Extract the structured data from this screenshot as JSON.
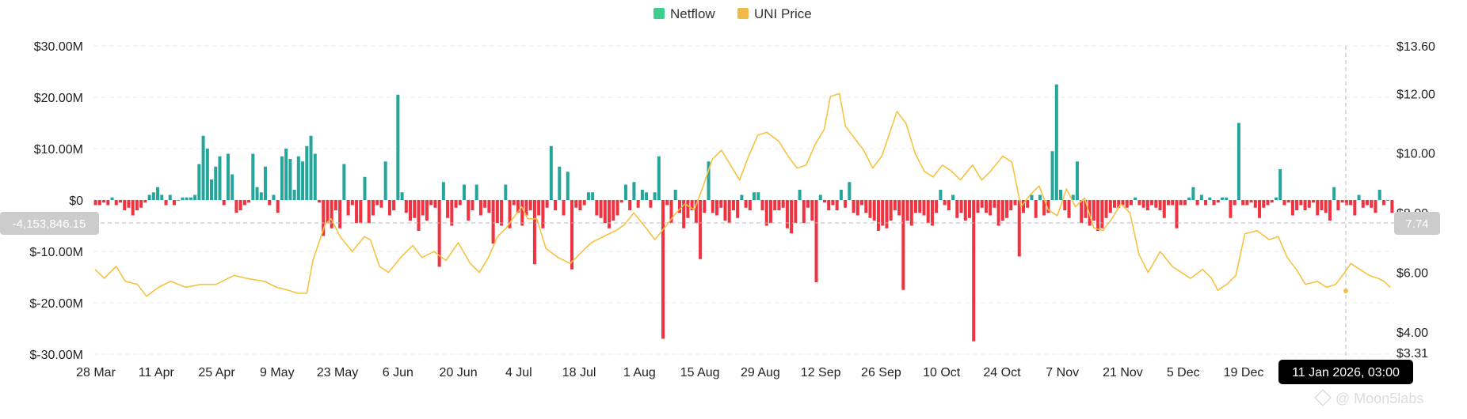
{
  "legend": {
    "netflow_label": "Netflow",
    "price_label": "UNI Price"
  },
  "crosshair": {
    "left_value": "-4,153,846.15",
    "right_value": "7.74",
    "date_label": "11 Jan 2026, 03:00"
  },
  "watermark": "@ Moon5labs",
  "colors": {
    "positive": "#26a69a",
    "negative": "#ef3340",
    "price_line": "#f5c242",
    "legend_netflow": "#3ecf8e",
    "legend_price": "#f0b94a",
    "grid": "#eeeeee",
    "crosshair_bg": "#cccccc",
    "date_label_bg": "#000000"
  },
  "chart_data": {
    "type": "bar+line",
    "x_ticks": [
      "28 Mar",
      "11 Apr",
      "25 Apr",
      "9 May",
      "23 May",
      "6 Jun",
      "20 Jun",
      "4 Jul",
      "18 Jul",
      "1 Aug",
      "15 Aug",
      "29 Aug",
      "12 Sep",
      "26 Sep",
      "10 Oct",
      "24 Oct",
      "7 Nov",
      "21 Nov",
      "5 Dec",
      "19 Dec"
    ],
    "y_left": {
      "ticks": [
        "$30.00M",
        "$20.00M",
        "$10.00M",
        "$0",
        "$-10.00M",
        "$-20.00M",
        "$-30.00M"
      ],
      "range": [
        -30,
        30
      ],
      "unit": "M"
    },
    "y_right": {
      "ticks": [
        "$13.60",
        "$12.00",
        "$10.00",
        "$8.00",
        "$6.00",
        "$4.00",
        "$3.31"
      ],
      "range": [
        3.31,
        13.6
      ]
    },
    "series": [
      {
        "name": "Netflow",
        "kind": "bar",
        "values": [
          -1,
          -1,
          -0.5,
          -1,
          0.5,
          -1,
          -0.5,
          -2,
          -1.5,
          -3,
          -2,
          -1.5,
          -0.5,
          1,
          1.5,
          2.5,
          1,
          -1,
          1,
          -1,
          0,
          0.5,
          0.5,
          0.5,
          1,
          7,
          12.5,
          10,
          4,
          6.5,
          8.5,
          -1,
          9,
          5,
          -2.5,
          -2,
          -1,
          -0.5,
          9,
          2.5,
          1.5,
          6.5,
          -1,
          1,
          -2.5,
          8.5,
          10,
          8,
          2,
          8.5,
          7.5,
          10.5,
          12.5,
          9,
          -0.5,
          -7,
          -4.5,
          -5.5,
          -2,
          -5.5,
          7,
          -3,
          -1,
          -4.5,
          -4.5,
          4.5,
          -4.5,
          -3,
          -1,
          -1.5,
          7.5,
          -3,
          -2,
          20.5,
          1.5,
          -2.5,
          -4,
          -3.5,
          -6,
          -3,
          -4,
          -1,
          -1.5,
          -13,
          3.5,
          -3.5,
          -5,
          -1.5,
          -1,
          3,
          -4,
          -2,
          3,
          -3,
          -1.5,
          -2.5,
          -8.5,
          -4.5,
          -5,
          3,
          -5.5,
          -1,
          -2.5,
          -5,
          -3,
          -2,
          -12.5,
          -3,
          -5.5,
          -1.5,
          10.5,
          -2,
          6.5,
          -3,
          5.5,
          -13.5,
          -1.5,
          -2,
          -1,
          1.5,
          1.5,
          -3,
          -3.5,
          -4.5,
          -5.5,
          -4,
          -3,
          -0.5,
          3,
          -2,
          3.5,
          -1.5,
          2,
          1.5,
          -1.5,
          1.5,
          8.5,
          -27,
          -1,
          -4.5,
          2,
          -2.5,
          -5.5,
          -3.5,
          -2,
          -4.5,
          -11.5,
          -2.5,
          7.5,
          -2.5,
          -3,
          -1.5,
          -4,
          -4.5,
          -2,
          -3.5,
          1,
          -1.5,
          -2,
          1.5,
          1.5,
          -2,
          -5,
          -4.5,
          -2,
          -2,
          -1.5,
          -5.5,
          -6.5,
          -4.5,
          2,
          -4.5,
          -1.5,
          -4,
          -16,
          1,
          -0.5,
          -2,
          -1,
          -2,
          2,
          -1.5,
          3.5,
          -2.5,
          -3,
          -1,
          -2.5,
          -3.5,
          -4,
          -6,
          -5,
          -5.5,
          -4,
          -2,
          -3,
          -17.5,
          -4,
          -5,
          -2.5,
          -2.5,
          -3,
          -4.5,
          -5,
          -2.5,
          2,
          -1,
          -2,
          1,
          -3.5,
          -2.5,
          -4,
          -3.5,
          -27.5,
          -2.5,
          -1.5,
          -2.5,
          -3,
          -1.5,
          -5,
          -4,
          -3.5,
          -2,
          -1,
          -11,
          -2.5,
          -1.5,
          1,
          -3.5,
          1,
          -3,
          -2.5,
          9.5,
          22.5,
          2,
          -2,
          -3.5,
          1,
          7.5,
          -4.5,
          -3.5,
          -5,
          -4,
          -6,
          -5.5,
          -3.5,
          -2.5,
          -1.5,
          -1.5,
          -1,
          -1.5,
          -1,
          0.5,
          -1,
          -1.5,
          -2,
          -1,
          -1.5,
          -2,
          -3.5,
          -1,
          -1,
          -5.5,
          -1,
          -1,
          0.5,
          2.5,
          -1,
          1,
          -1,
          0.5,
          -1,
          -0.5,
          0.5,
          0.5,
          -3.5,
          -1,
          15,
          -1,
          -1,
          -0.5,
          -1.5,
          -3.5,
          -1.5,
          -1,
          -0.5,
          0.5,
          6,
          -1,
          -0.5,
          -3,
          -2,
          -1,
          -2,
          -1.5,
          -0.5,
          -3,
          -2,
          -2.5,
          -4,
          2.5,
          -2,
          -0.5,
          -1,
          -1,
          -3,
          1,
          -1.5,
          -1,
          -1.5,
          -2.5,
          2,
          -1,
          0,
          -2.5
        ]
      },
      {
        "name": "UNI Price",
        "kind": "line",
        "points": [
          [
            0,
            6.1
          ],
          [
            3,
            5.8
          ],
          [
            7,
            6.2
          ],
          [
            10,
            5.7
          ],
          [
            14,
            5.6
          ],
          [
            17,
            5.2
          ],
          [
            21,
            5.5
          ],
          [
            25,
            5.7
          ],
          [
            30,
            5.5
          ],
          [
            35,
            5.6
          ],
          [
            40,
            5.6
          ],
          [
            46,
            5.9
          ],
          [
            50,
            5.8
          ],
          [
            56,
            5.7
          ],
          [
            60,
            5.5
          ],
          [
            64,
            5.4
          ],
          [
            67,
            5.3
          ],
          [
            70,
            5.3
          ],
          [
            72,
            6.4
          ],
          [
            76,
            7.6
          ],
          [
            78,
            7.8
          ],
          [
            81,
            7.2
          ],
          [
            85,
            6.7
          ],
          [
            89,
            7.2
          ],
          [
            91,
            7.1
          ],
          [
            94,
            6.2
          ],
          [
            97,
            6.0
          ],
          [
            101,
            6.5
          ],
          [
            105,
            6.9
          ],
          [
            108,
            6.5
          ],
          [
            112,
            6.7
          ],
          [
            116,
            6.4
          ],
          [
            120,
            7.0
          ],
          [
            124,
            6.3
          ],
          [
            127,
            6.0
          ],
          [
            130,
            6.5
          ],
          [
            133,
            7.2
          ],
          [
            136,
            7.5
          ],
          [
            138,
            7.8
          ],
          [
            141,
            8.2
          ],
          [
            143,
            7.8
          ],
          [
            146,
            7.8
          ],
          [
            149,
            6.8
          ],
          [
            153,
            6.5
          ],
          [
            157,
            6.3
          ],
          [
            160,
            6.6
          ],
          [
            164,
            7.0
          ],
          [
            168,
            7.2
          ],
          [
            172,
            7.4
          ],
          [
            175,
            7.6
          ],
          [
            178,
            8.0
          ],
          [
            182,
            7.5
          ],
          [
            185,
            7.1
          ],
          [
            189,
            7.6
          ],
          [
            192,
            8.0
          ],
          [
            195,
            8.3
          ],
          [
            198,
            8.1
          ],
          [
            201,
            8.9
          ],
          [
            204,
            9.8
          ],
          [
            207,
            10.1
          ],
          [
            210,
            9.6
          ],
          [
            213,
            9.1
          ],
          [
            216,
            9.9
          ],
          [
            219,
            10.6
          ],
          [
            222,
            10.7
          ],
          [
            226,
            10.4
          ],
          [
            229,
            9.9
          ],
          [
            232,
            9.5
          ],
          [
            235,
            9.6
          ],
          [
            238,
            10.3
          ],
          [
            241,
            10.8
          ],
          [
            243,
            11.9
          ],
          [
            246,
            12.0
          ],
          [
            248,
            10.9
          ],
          [
            251,
            10.5
          ],
          [
            254,
            10.1
          ],
          [
            257,
            9.5
          ],
          [
            260,
            9.9
          ],
          [
            263,
            10.8
          ],
          [
            265,
            11.4
          ],
          [
            268,
            11.0
          ],
          [
            271,
            10.0
          ],
          [
            274,
            9.4
          ],
          [
            277,
            9.2
          ],
          [
            280,
            9.6
          ],
          [
            283,
            9.4
          ],
          [
            286,
            9.1
          ],
          [
            290,
            9.6
          ],
          [
            293,
            9.1
          ],
          [
            296,
            9.4
          ],
          [
            300,
            9.9
          ],
          [
            303,
            9.7
          ],
          [
            306,
            8.2
          ],
          [
            309,
            8.6
          ],
          [
            312,
            8.9
          ],
          [
            315,
            8.1
          ],
          [
            318,
            7.9
          ],
          [
            321,
            8.8
          ],
          [
            324,
            8.2
          ],
          [
            327,
            8.5
          ],
          [
            330,
            7.5
          ],
          [
            333,
            7.4
          ],
          [
            336,
            7.8
          ],
          [
            339,
            8.3
          ],
          [
            342,
            8.0
          ],
          [
            345,
            6.6
          ],
          [
            348,
            6.0
          ],
          [
            352,
            6.7
          ],
          [
            356,
            6.2
          ],
          [
            359,
            6.0
          ],
          [
            362,
            5.8
          ],
          [
            366,
            6.1
          ],
          [
            369,
            5.8
          ],
          [
            371,
            5.4
          ],
          [
            374,
            5.6
          ],
          [
            377,
            5.9
          ],
          [
            380,
            7.3
          ],
          [
            384,
            7.4
          ],
          [
            388,
            7.1
          ],
          [
            391,
            7.2
          ],
          [
            394,
            6.5
          ],
          [
            397,
            6.1
          ],
          [
            400,
            5.6
          ],
          [
            404,
            5.7
          ],
          [
            407,
            5.5
          ],
          [
            410,
            5.6
          ],
          [
            413,
            6.0
          ],
          [
            415,
            6.3
          ],
          [
            418,
            6.1
          ],
          [
            421,
            5.9
          ],
          [
            424,
            5.8
          ],
          [
            426,
            5.7
          ],
          [
            428,
            5.5
          ]
        ]
      }
    ]
  }
}
